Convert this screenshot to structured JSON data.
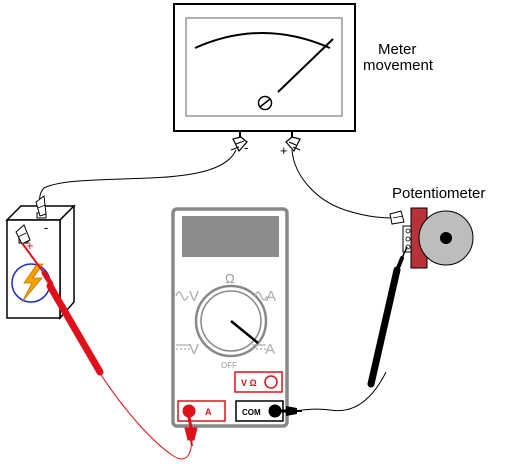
{
  "labels": {
    "meter_movement_line1": "Meter",
    "meter_movement_line2": "movement",
    "potentiometer": "Potentiometer",
    "meter_minus": "-",
    "meter_plus": "+",
    "battery_minus": "-",
    "battery_plus": "+"
  },
  "multimeter": {
    "dial_labels": {
      "ohm": "Ω",
      "ac_volts": "V",
      "ac_amps": "A",
      "dc_volts": "V",
      "dc_amps": "A",
      "off": "OFF"
    },
    "jacks": {
      "v_ohm_label": "V Ω",
      "amps_label": "A",
      "com_label": "COM"
    }
  },
  "colors": {
    "red_lead": "#e0101a",
    "black_lead": "#111111",
    "meter_body_outline": "#888888",
    "display": "#8c8c8c",
    "potentiometer_body": "#b8323a",
    "potentiometer_knob": "#bdbdbd",
    "battery_symbol_circle": "#1a2ad0",
    "battery_bolt": "#f5a000"
  }
}
